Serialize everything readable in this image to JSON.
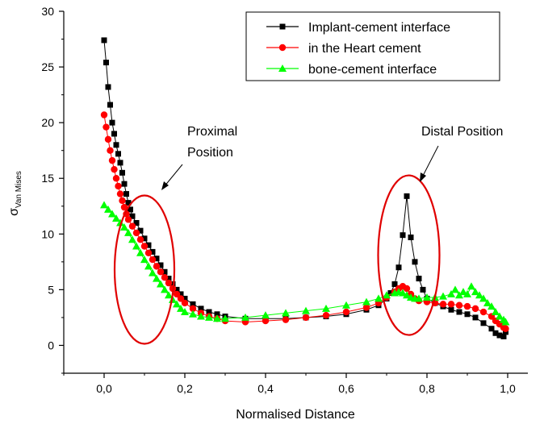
{
  "chart_data": {
    "type": "scatter",
    "xlabel": "Normalised Distance",
    "ylabel_main": "σ",
    "ylabel_sub": "Van Mises",
    "xlim": [
      -0.1,
      1.05
    ],
    "ylim": [
      -2.5,
      30
    ],
    "x_ticks": [
      0.0,
      0.2,
      0.4,
      0.6,
      0.8,
      1.0
    ],
    "x_tick_labels": [
      "0,0",
      "0,2",
      "0,4",
      "0,6",
      "0,8",
      "1,0"
    ],
    "y_ticks": [
      0,
      5,
      10,
      15,
      20,
      25,
      30
    ],
    "y_tick_labels": [
      "0",
      "5",
      "10",
      "15",
      "20",
      "25",
      "30"
    ],
    "grid": false,
    "legend_position": "top-right",
    "series": [
      {
        "name": "Implant-cement interface",
        "color": "#000000",
        "marker": "square",
        "points": [
          [
            0.0,
            27.4
          ],
          [
            0.005,
            25.4
          ],
          [
            0.01,
            23.2
          ],
          [
            0.015,
            21.6
          ],
          [
            0.02,
            20.0
          ],
          [
            0.025,
            19.0
          ],
          [
            0.03,
            18.0
          ],
          [
            0.035,
            17.2
          ],
          [
            0.04,
            16.4
          ],
          [
            0.045,
            15.5
          ],
          [
            0.05,
            14.5
          ],
          [
            0.055,
            13.6
          ],
          [
            0.06,
            12.8
          ],
          [
            0.065,
            12.2
          ],
          [
            0.07,
            11.6
          ],
          [
            0.08,
            11.0
          ],
          [
            0.09,
            10.3
          ],
          [
            0.1,
            9.6
          ],
          [
            0.11,
            9.0
          ],
          [
            0.12,
            8.4
          ],
          [
            0.13,
            7.8
          ],
          [
            0.14,
            7.2
          ],
          [
            0.15,
            6.6
          ],
          [
            0.16,
            6.0
          ],
          [
            0.17,
            5.5
          ],
          [
            0.18,
            5.0
          ],
          [
            0.19,
            4.6
          ],
          [
            0.2,
            4.2
          ],
          [
            0.22,
            3.7
          ],
          [
            0.24,
            3.3
          ],
          [
            0.26,
            3.0
          ],
          [
            0.28,
            2.8
          ],
          [
            0.3,
            2.6
          ],
          [
            0.35,
            2.4
          ],
          [
            0.4,
            2.4
          ],
          [
            0.45,
            2.4
          ],
          [
            0.5,
            2.5
          ],
          [
            0.55,
            2.6
          ],
          [
            0.6,
            2.8
          ],
          [
            0.65,
            3.2
          ],
          [
            0.68,
            3.6
          ],
          [
            0.7,
            4.2
          ],
          [
            0.71,
            4.7
          ],
          [
            0.72,
            5.5
          ],
          [
            0.73,
            7.0
          ],
          [
            0.74,
            9.9
          ],
          [
            0.75,
            13.4
          ],
          [
            0.76,
            9.7
          ],
          [
            0.77,
            7.5
          ],
          [
            0.78,
            6.0
          ],
          [
            0.79,
            5.0
          ],
          [
            0.8,
            4.2
          ],
          [
            0.82,
            3.8
          ],
          [
            0.84,
            3.5
          ],
          [
            0.86,
            3.2
          ],
          [
            0.88,
            3.0
          ],
          [
            0.9,
            2.8
          ],
          [
            0.92,
            2.5
          ],
          [
            0.94,
            2.0
          ],
          [
            0.96,
            1.5
          ],
          [
            0.97,
            1.1
          ],
          [
            0.98,
            0.9
          ],
          [
            0.99,
            0.8
          ],
          [
            0.995,
            1.2
          ]
        ]
      },
      {
        "name": "in the Heart cement",
        "color": "#ff0000",
        "marker": "circle",
        "points": [
          [
            0.0,
            20.7
          ],
          [
            0.005,
            19.6
          ],
          [
            0.01,
            18.5
          ],
          [
            0.015,
            17.5
          ],
          [
            0.02,
            16.6
          ],
          [
            0.025,
            15.8
          ],
          [
            0.03,
            15.0
          ],
          [
            0.035,
            14.3
          ],
          [
            0.04,
            13.6
          ],
          [
            0.045,
            13.0
          ],
          [
            0.05,
            12.4
          ],
          [
            0.055,
            11.8
          ],
          [
            0.06,
            11.3
          ],
          [
            0.07,
            10.7
          ],
          [
            0.08,
            10.1
          ],
          [
            0.09,
            9.5
          ],
          [
            0.1,
            8.9
          ],
          [
            0.11,
            8.3
          ],
          [
            0.12,
            7.7
          ],
          [
            0.13,
            7.1
          ],
          [
            0.14,
            6.6
          ],
          [
            0.15,
            6.1
          ],
          [
            0.16,
            5.6
          ],
          [
            0.17,
            5.1
          ],
          [
            0.18,
            4.6
          ],
          [
            0.19,
            4.2
          ],
          [
            0.2,
            3.8
          ],
          [
            0.22,
            3.3
          ],
          [
            0.24,
            2.9
          ],
          [
            0.26,
            2.6
          ],
          [
            0.28,
            2.4
          ],
          [
            0.3,
            2.2
          ],
          [
            0.35,
            2.1
          ],
          [
            0.4,
            2.2
          ],
          [
            0.45,
            2.3
          ],
          [
            0.5,
            2.5
          ],
          [
            0.55,
            2.7
          ],
          [
            0.6,
            3.0
          ],
          [
            0.65,
            3.4
          ],
          [
            0.68,
            3.8
          ],
          [
            0.7,
            4.3
          ],
          [
            0.72,
            4.8
          ],
          [
            0.73,
            5.1
          ],
          [
            0.74,
            5.3
          ],
          [
            0.75,
            5.1
          ],
          [
            0.76,
            4.6
          ],
          [
            0.77,
            4.2
          ],
          [
            0.78,
            4.0
          ],
          [
            0.8,
            3.9
          ],
          [
            0.82,
            3.8
          ],
          [
            0.84,
            3.7
          ],
          [
            0.86,
            3.7
          ],
          [
            0.88,
            3.6
          ],
          [
            0.9,
            3.5
          ],
          [
            0.92,
            3.3
          ],
          [
            0.94,
            3.0
          ],
          [
            0.96,
            2.6
          ],
          [
            0.97,
            2.2
          ],
          [
            0.98,
            1.9
          ],
          [
            0.99,
            1.6
          ],
          [
            0.995,
            1.5
          ]
        ]
      },
      {
        "name": "bone-cement interface",
        "color": "#00ff00",
        "marker": "triangle",
        "points": [
          [
            0.0,
            12.6
          ],
          [
            0.01,
            12.2
          ],
          [
            0.02,
            11.8
          ],
          [
            0.03,
            11.4
          ],
          [
            0.04,
            11.0
          ],
          [
            0.05,
            10.6
          ],
          [
            0.06,
            10.1
          ],
          [
            0.07,
            9.5
          ],
          [
            0.08,
            8.9
          ],
          [
            0.09,
            8.3
          ],
          [
            0.1,
            7.7
          ],
          [
            0.11,
            7.1
          ],
          [
            0.12,
            6.5
          ],
          [
            0.13,
            6.0
          ],
          [
            0.14,
            5.5
          ],
          [
            0.15,
            5.0
          ],
          [
            0.16,
            4.5
          ],
          [
            0.17,
            4.1
          ],
          [
            0.18,
            3.7
          ],
          [
            0.19,
            3.3
          ],
          [
            0.2,
            3.0
          ],
          [
            0.22,
            2.8
          ],
          [
            0.24,
            2.6
          ],
          [
            0.26,
            2.5
          ],
          [
            0.28,
            2.4
          ],
          [
            0.3,
            2.4
          ],
          [
            0.35,
            2.5
          ],
          [
            0.4,
            2.7
          ],
          [
            0.45,
            2.9
          ],
          [
            0.5,
            3.1
          ],
          [
            0.55,
            3.3
          ],
          [
            0.6,
            3.6
          ],
          [
            0.65,
            3.9
          ],
          [
            0.68,
            4.2
          ],
          [
            0.7,
            4.5
          ],
          [
            0.72,
            4.7
          ],
          [
            0.73,
            4.8
          ],
          [
            0.74,
            4.7
          ],
          [
            0.75,
            4.5
          ],
          [
            0.76,
            4.3
          ],
          [
            0.77,
            4.2
          ],
          [
            0.78,
            4.2
          ],
          [
            0.8,
            4.3
          ],
          [
            0.82,
            4.3
          ],
          [
            0.84,
            4.4
          ],
          [
            0.86,
            4.6
          ],
          [
            0.87,
            5.0
          ],
          [
            0.88,
            4.5
          ],
          [
            0.89,
            4.8
          ],
          [
            0.9,
            4.6
          ],
          [
            0.91,
            5.3
          ],
          [
            0.92,
            4.8
          ],
          [
            0.93,
            4.5
          ],
          [
            0.94,
            4.2
          ],
          [
            0.95,
            3.8
          ],
          [
            0.96,
            3.5
          ],
          [
            0.97,
            3.0
          ],
          [
            0.98,
            2.6
          ],
          [
            0.99,
            2.3
          ],
          [
            0.995,
            2.1
          ]
        ]
      }
    ],
    "annotations": [
      {
        "lines": [
          "Proximal",
          "Position"
        ],
        "ellipse_center": [
          0.1,
          6.8
        ],
        "ellipse_radius": [
          0.075,
          6.8
        ]
      },
      {
        "lines": [
          "Distal Position"
        ],
        "ellipse_center": [
          0.755,
          8.1
        ],
        "ellipse_radius": [
          0.075,
          7.3
        ]
      }
    ]
  }
}
